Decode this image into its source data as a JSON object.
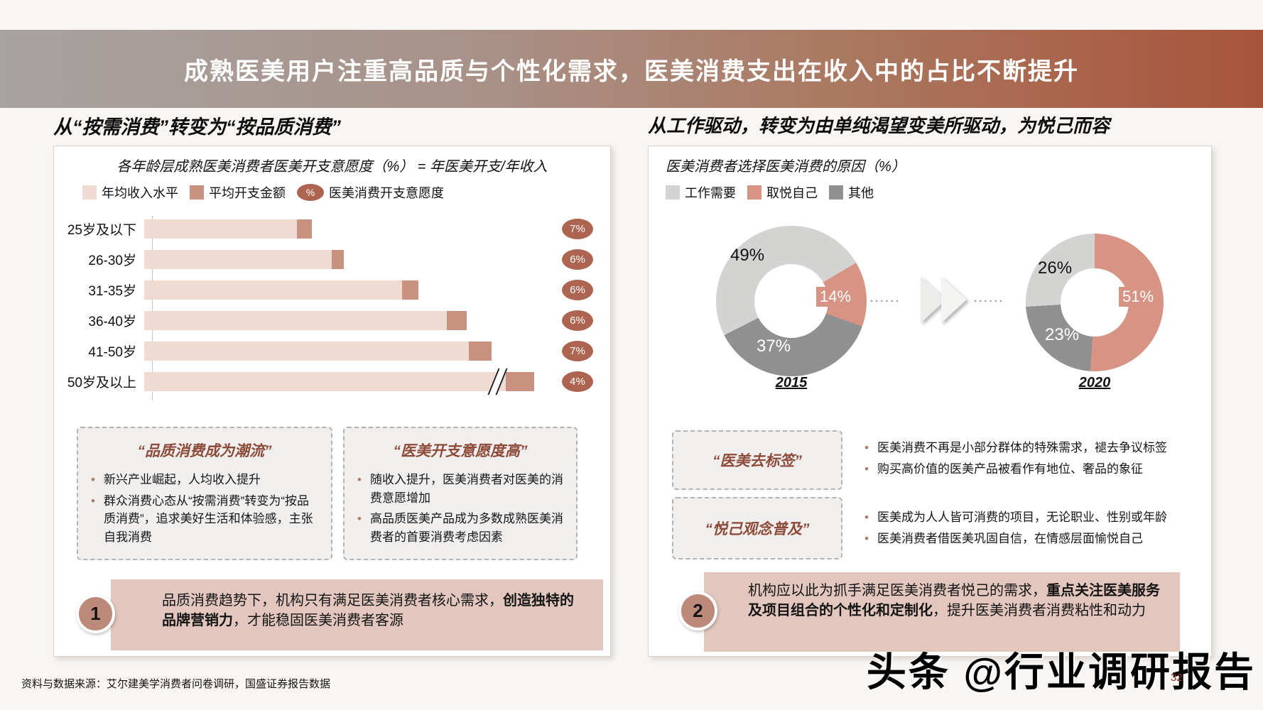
{
  "page": {
    "title": "成熟医美用户注重高品质与个性化需求，医美消费支出在收入中的占比不断提升",
    "footer_source": "资料与数据来源：艾尔建美学消费者问卷调研，国盛证券报告数据",
    "watermark": "头条 @行业调研报告",
    "page_number": "32",
    "accent_color": "#a8543a",
    "header_gradient_left": "#a7a3a2",
    "header_gradient_right": "#a8543a"
  },
  "left": {
    "section_title": "从“按需消费”转变为“按品质消费”",
    "chart_subtitle": "各年龄层成熟医美消费者医美开支意愿度（%） = 年医美开支/年收入",
    "legend": [
      {
        "label": "年均收入水平",
        "color": "#f0dbd2"
      },
      {
        "label": "平均开支金额",
        "color": "#c9917f"
      },
      {
        "label": "医美消费开支意愿度",
        "badge": "%",
        "color": "#ad6450"
      }
    ],
    "boxes": [
      {
        "title": "“品质消费成为潮流”",
        "bullets": [
          "新兴产业崛起，人均收入提升",
          "群众消费心态从“按需消费”转变为“按品质消费”，追求美好生活和体验感，主张自我消费"
        ]
      },
      {
        "title": "“医美开支意愿度高”",
        "bullets": [
          "随收入提升，医美消费者对医美的消费意愿增加",
          "高品质医美产品成为多数成熟医美消费者的首要消费考虑因素"
        ]
      }
    ],
    "callout": {
      "number": "1",
      "text_before": "品质消费趋势下，机构只有满足医美消费者核心需求，",
      "text_bold": "创造独特的品牌营销力",
      "text_after": "，才能稳固医美消费者客源"
    }
  },
  "right": {
    "section_title": "从工作驱动，转变为由单纯渴望变美所驱动，为悦己而容",
    "chart_subtitle": "医美消费者选择医美消费的原因（%）",
    "legend": [
      {
        "label": "工作需要",
        "color": "#d3d3d2"
      },
      {
        "label": "取悦自己",
        "color": "#d79484"
      },
      {
        "label": "其他",
        "color": "#909091"
      }
    ],
    "arrow_dots": "......",
    "boxes": [
      {
        "title": "“医美去标签”",
        "bullets": [
          "医美消费不再是小部分群体的特殊需求，褪去争议标签",
          "购买高价值的医美产品被看作有地位、奢品的象征"
        ]
      },
      {
        "title": "“悦己观念普及”",
        "bullets": [
          "医美成为人人皆可消费的项目，无论职业、性别或年龄",
          "医美消费者借医美巩固自信，在情感层面愉悦自己"
        ]
      }
    ],
    "callout": {
      "number": "2",
      "text_before": "机构应以此为抓手满足医美消费者悦己的需求，",
      "text_bold": "重点关注医美服务及项目组合的个性化和定制化",
      "text_after": "，提升医美消费者消费粘性和动力"
    }
  },
  "chart_data": [
    {
      "type": "bar",
      "orientation": "horizontal",
      "title": "各年龄层成熟医美消费者医美开支意愿度（%） = 年医美开支/年收入",
      "categories": [
        "25岁及以下",
        "26-30岁",
        "31-35岁",
        "36-40岁",
        "41-50岁",
        "50岁及以上"
      ],
      "series": [
        {
          "name": "年均收入水平",
          "color": "#f0dbd2",
          "values_pct_of_scale": [
            38.6,
            47.4,
            65.2,
            76.7,
            82.2,
            91.6
          ]
        },
        {
          "name": "平均开支金额",
          "color": "#c9917f",
          "values_pct_of_scale": [
            3.8,
            3.2,
            4.3,
            5.0,
            5.8,
            7.2
          ]
        }
      ],
      "willingness_badges": [
        "7%",
        "6%",
        "6%",
        "6%",
        "7%",
        "4%"
      ],
      "axis_break_category": "50岁及以上",
      "note": "无数值轴，条长为相对比例；圆形标签为医美消费开支意愿度"
    },
    {
      "type": "donut",
      "title": "医美消费者选择医美消费的原因（%）",
      "donuts": [
        {
          "year": "2015",
          "start_deg": 243,
          "slices": [
            {
              "name": "工作需要",
              "value": 49,
              "pct": "49%",
              "color": "#d3d3d2"
            },
            {
              "name": "取悦自己",
              "value": 14,
              "pct": "14%",
              "color": "#d79484"
            },
            {
              "name": "其他",
              "value": 37,
              "pct": "37%",
              "color": "#909091"
            }
          ]
        },
        {
          "year": "2020",
          "start_deg": 0,
          "slices": [
            {
              "name": "取悦自己",
              "value": 51,
              "pct": "51%",
              "color": "#d79484"
            },
            {
              "name": "其他",
              "value": 23,
              "pct": "23%",
              "color": "#909091"
            },
            {
              "name": "工作需要",
              "value": 26,
              "pct": "26%",
              "color": "#d3d3d2"
            }
          ]
        }
      ]
    }
  ]
}
